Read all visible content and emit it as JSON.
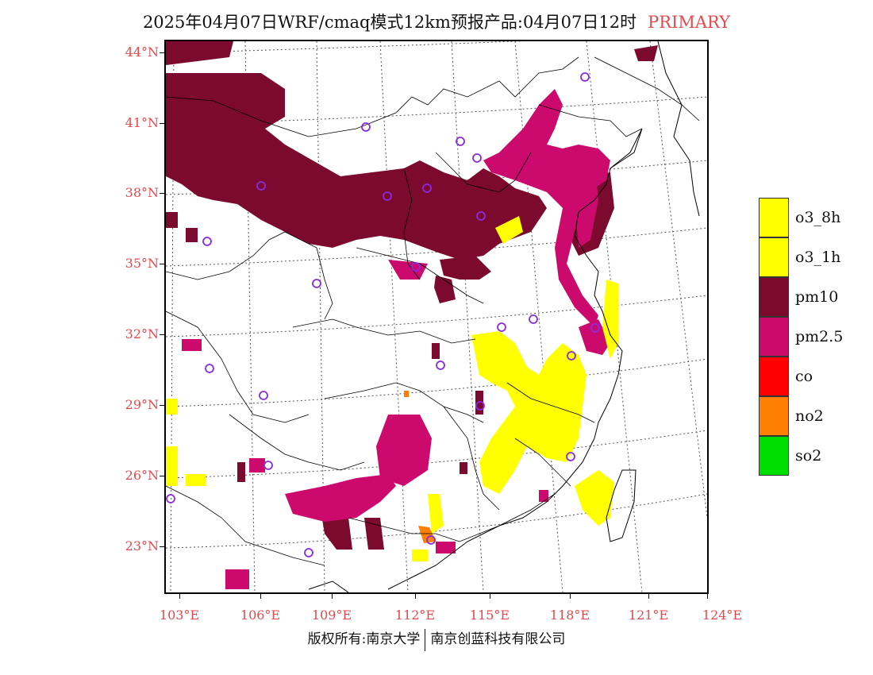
{
  "title": {
    "main": "2025年04月07日WRF/cmaq模式12km预报产品:04月07日12时",
    "tag": "PRIMARY"
  },
  "colors": {
    "pm10": "#7b0a2e",
    "pm25": "#cc0a6e",
    "o3": "#ffff00",
    "co": "#ff0000",
    "no2": "#ff8000",
    "so2": "#00dd00",
    "station": "#8a2be2",
    "axis_label": "#e8474c"
  },
  "lat_labels": [
    "44°N",
    "41°N",
    "38°N",
    "35°N",
    "32°N",
    "29°N",
    "26°N",
    "23°N"
  ],
  "lon_labels": [
    "103°E",
    "106°E",
    "109°E",
    "112°E",
    "115°E",
    "118°E",
    "121°E",
    "124°E"
  ],
  "legend": [
    {
      "label": "o3_8h",
      "color": "#ffff00"
    },
    {
      "label": "o3_1h",
      "color": "#ffff00"
    },
    {
      "label": "pm10",
      "color": "#7b0a2e"
    },
    {
      "label": "pm2.5",
      "color": "#cc0a6e"
    },
    {
      "label": "co",
      "color": "#ff0000"
    },
    {
      "label": "no2",
      "color": "#ff8000"
    },
    {
      "label": "so2",
      "color": "#00dd00"
    }
  ],
  "copyright": {
    "left": "版权所有:南京大学",
    "right": "南京创蓝科技有限公司"
  },
  "station_icon": "circle-marker-icon"
}
